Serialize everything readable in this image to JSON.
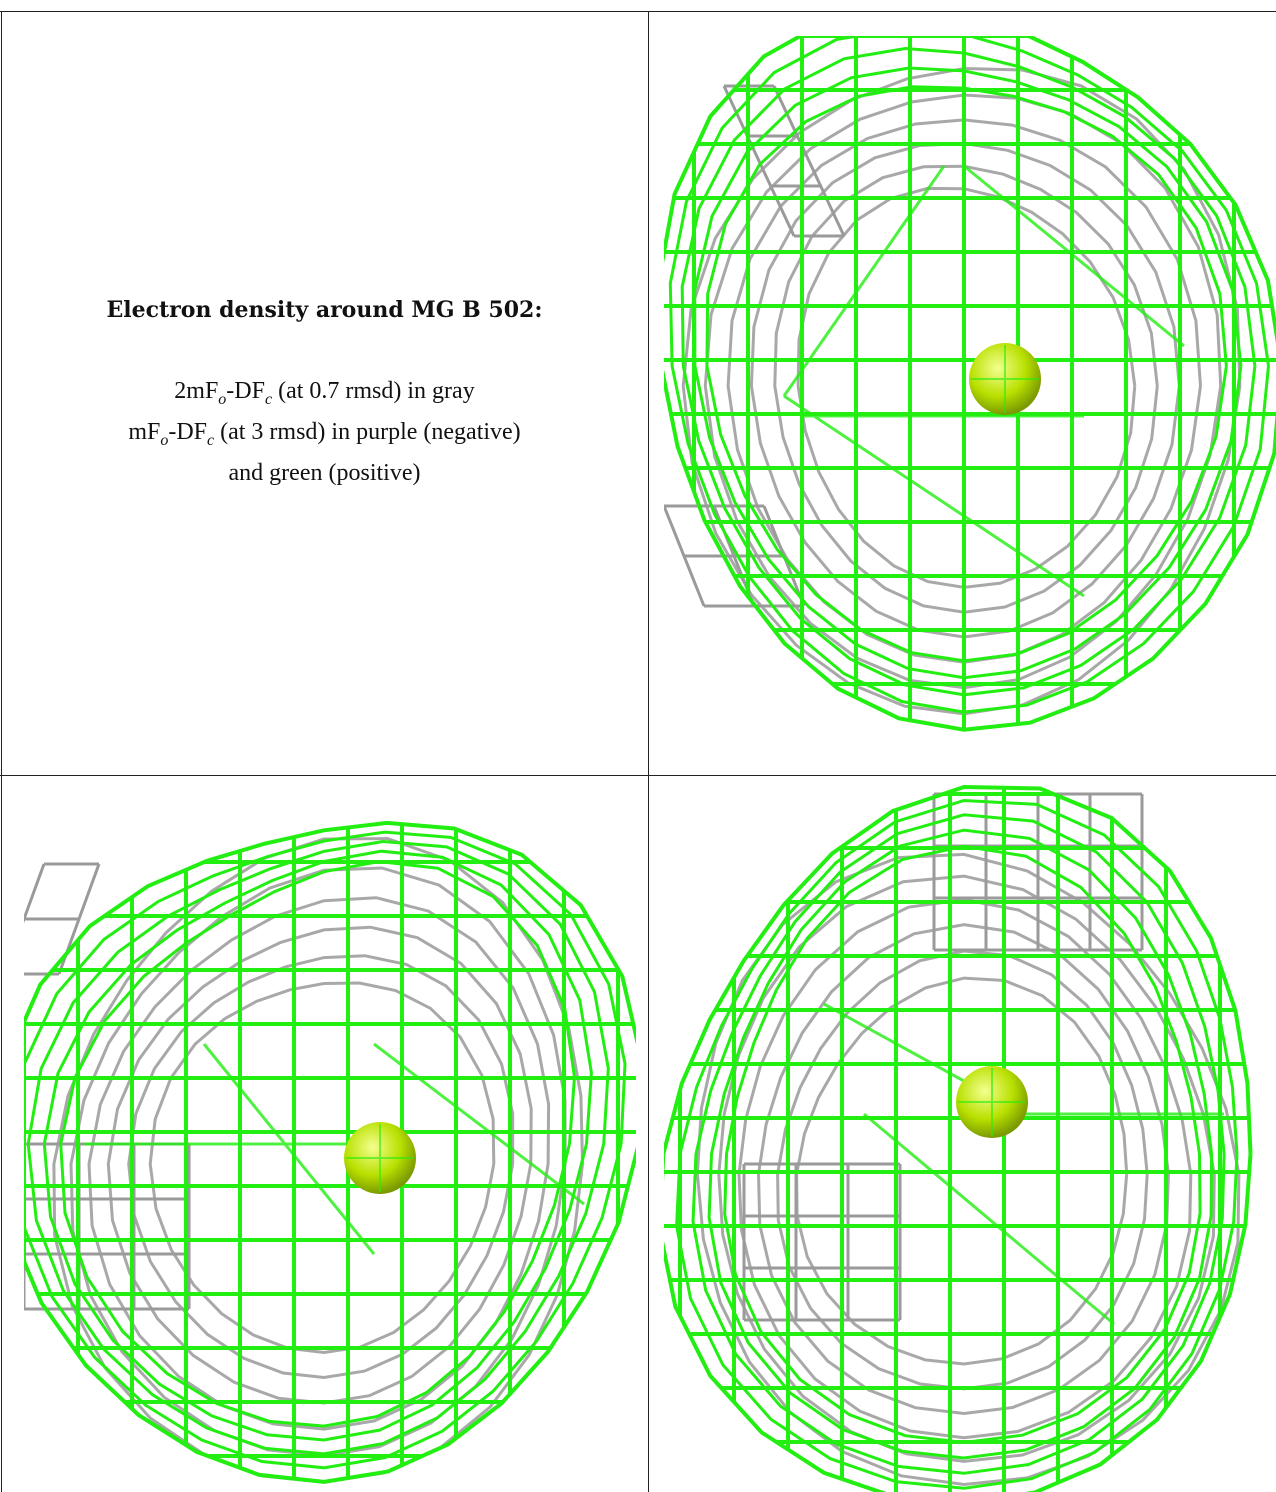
{
  "caption": {
    "title": "Electron density around MG B 502:",
    "map1": {
      "a": "2mF",
      "sub1": "o",
      "b": "-DF",
      "sub2": "c",
      "rest": " (at 0.7 rmsd) in gray"
    },
    "map2": {
      "a": "mF",
      "sub1": "o",
      "b": "-DF",
      "sub2": "c",
      "rest": " (at 3 rmsd) in purple (negative)"
    },
    "map2_cont": "and green (positive)"
  },
  "colors": {
    "positive_mesh": "#22ee11",
    "gray_mesh": "#9a9a9a",
    "atom": "#b8e000",
    "border": "#222222"
  },
  "panels": [
    {
      "name": "view-top-right"
    },
    {
      "name": "view-bottom-left"
    },
    {
      "name": "view-bottom-right"
    }
  ]
}
